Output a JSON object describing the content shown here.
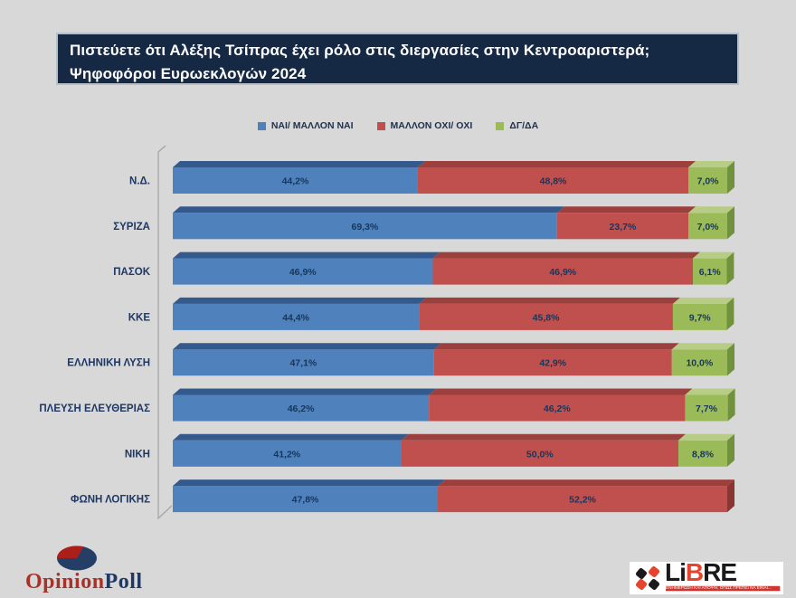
{
  "title": {
    "line1": "Πιστεύετε ότι Αλέξης Τσίπρας έχει ρόλο στις διεργασίες στην Κεντροαριστερά;",
    "line2": "Ψηφοφόροι Ευρωεκλογών 2024"
  },
  "chart_data": {
    "type": "bar",
    "stacked": true,
    "orientation": "horizontal",
    "style": "3d",
    "xlim": [
      0,
      100
    ],
    "value_format": "percent, comma decimal, one decimal place",
    "legend_position": "top-center",
    "background": "#d8d8d8",
    "legend": [
      {
        "label": "ΝΑΙ/ ΜΑΛΛΟΝ ΝΑΙ",
        "color": "#4F81BD"
      },
      {
        "label": "ΜΑΛΛΟΝ ΟΧΙ/ ΟΧΙ",
        "color": "#C0504D"
      },
      {
        "label": "ΔΓ/ΔΑ",
        "color": "#9BBB59"
      }
    ],
    "categories": [
      "Ν.Δ.",
      "ΣΥΡΙΖΑ",
      "ΠΑΣΟΚ",
      "ΚΚΕ",
      "ΕΛΛΗΝΙΚΗ ΛΥΣΗ",
      "ΠΛΕΥΣΗ ΕΛΕΥΘΕΡΙΑΣ",
      "ΝΙΚΗ",
      "ΦΩΝΗ ΛΟΓΙΚΗΣ"
    ],
    "series": [
      {
        "name": "ΝΑΙ/ ΜΑΛΛΟΝ ΝΑΙ",
        "color": "#4F81BD",
        "top_color": "#34598C",
        "cap_color": "#2C4D73",
        "values": [
          44.2,
          69.3,
          46.9,
          44.4,
          47.1,
          46.2,
          41.2,
          47.8
        ]
      },
      {
        "name": "ΜΑΛΛΟΝ ΟΧΙ/ ΟΧΙ",
        "color": "#C0504D",
        "top_color": "#9C403E",
        "cap_color": "#8B3533",
        "values": [
          48.8,
          23.7,
          46.9,
          45.8,
          42.9,
          46.2,
          50.0,
          52.2
        ]
      },
      {
        "name": "ΔΓ/ΔΑ",
        "color": "#9BBB59",
        "top_color": "#B7CC84",
        "cap_color": "#71923C",
        "values": [
          7.0,
          7.0,
          6.1,
          9.7,
          10.0,
          7.7,
          8.8,
          null
        ]
      }
    ]
  },
  "logos": {
    "opinion_poll": {
      "part1": "Opinion",
      "part2": "Poll",
      "color1": "#A83228",
      "color2": "#1F3864",
      "pie_main": "#243E66",
      "pie_slice": "#AA1F1A"
    },
    "libre": {
      "part1": "Li",
      "part2": "B",
      "part3": "RE",
      "accent": "#E8432D",
      "dark": "#1a1a1a",
      "tagline": "ΕΝΗΜΕΡΩΣΗ ΚΑΙ ΑΠΟΨΗ, ΟΠΩΣ ΠΡΕΠΕΙ ΝΑ ΕΙΝΑΙ..."
    }
  }
}
